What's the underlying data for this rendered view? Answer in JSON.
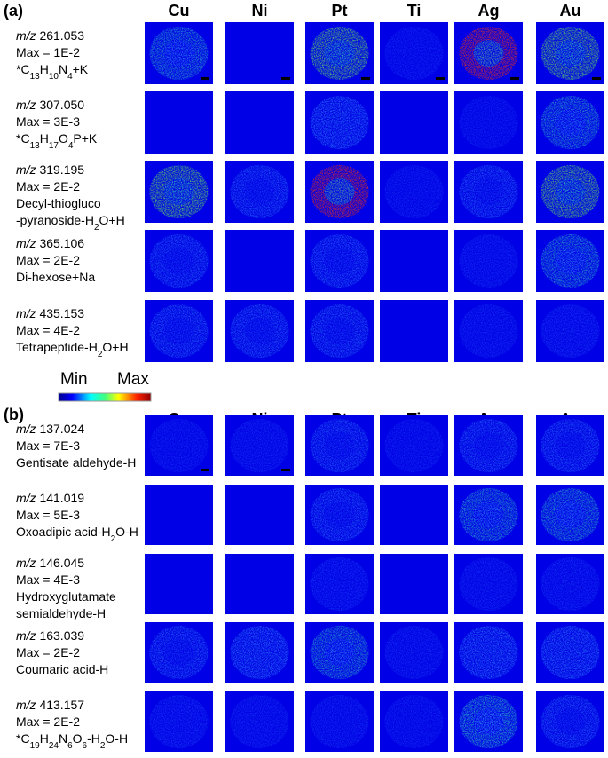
{
  "colorbar": {
    "min": "Min",
    "max": "Max"
  },
  "panels": [
    {
      "label": "(a)",
      "columns": [
        "Cu",
        "Ni",
        "Pt",
        "Ti",
        "Ag",
        "Au"
      ],
      "rows": [
        {
          "lines": [
            [
              {
                "it": "m/z"
              },
              {
                "t": " 261.053"
              }
            ],
            [
              {
                "t": "Max = 1E-2"
              }
            ],
            [
              {
                "t": "*C"
              },
              {
                "sub": "13"
              },
              {
                "t": "H"
              },
              {
                "sub": "10"
              },
              {
                "t": "N"
              },
              {
                "sub": "4"
              },
              {
                "t": "+K"
              }
            ]
          ]
        },
        {
          "lines": [
            [
              {
                "it": "m/z"
              },
              {
                "t": " 307.050"
              }
            ],
            [
              {
                "t": "Max = 3E-3"
              }
            ],
            [
              {
                "t": "*C"
              },
              {
                "sub": "13"
              },
              {
                "t": "H"
              },
              {
                "sub": "17"
              },
              {
                "t": "O"
              },
              {
                "sub": "4"
              },
              {
                "t": "P+K"
              }
            ]
          ]
        },
        {
          "lines": [
            [
              {
                "it": "m/z"
              },
              {
                "t": " 319.195"
              }
            ],
            [
              {
                "t": "Max = 2E-2"
              }
            ],
            [
              {
                "t": "Decyl-thiogluco"
              }
            ],
            [
              {
                "t": "-pyranoside-H"
              },
              {
                "sub": "2"
              },
              {
                "t": "O+H"
              }
            ]
          ]
        },
        {
          "lines": [
            [
              {
                "it": "m/z"
              },
              {
                "t": "  365.106"
              }
            ],
            [
              {
                "t": "Max = 2E-2"
              }
            ],
            [
              {
                "t": "Di-hexose+Na"
              }
            ]
          ]
        },
        {
          "lines": [
            [
              {
                "it": "m/z"
              },
              {
                "t": " 435.153"
              }
            ],
            [
              {
                "t": "Max = 4E-2"
              }
            ],
            [
              {
                "t": "Tetrapeptide-H"
              },
              {
                "sub": "2"
              },
              {
                "t": "O+H"
              }
            ]
          ]
        }
      ]
    },
    {
      "label": "(b)",
      "columns": [
        "Cu",
        "Ni",
        "Pt",
        "Ti",
        "Ag",
        "Au"
      ],
      "rows": [
        {
          "lines": [
            [
              {
                "it": "m/z"
              },
              {
                "t": " 137.024"
              }
            ],
            [
              {
                "t": "Max = 7E-3"
              }
            ],
            [
              {
                "t": "Gentisate aldehyde-H"
              }
            ]
          ]
        },
        {
          "lines": [
            [
              {
                "it": "m/z"
              },
              {
                "t": " 141.019"
              }
            ],
            [
              {
                "t": "Max = 5E-3"
              }
            ],
            [
              {
                "t": "Oxoadipic acid-H"
              },
              {
                "sub": "2"
              },
              {
                "t": "O-H"
              }
            ]
          ]
        },
        {
          "lines": [
            [
              {
                "it": "m/z"
              },
              {
                "t": " 146.045"
              }
            ],
            [
              {
                "t": "Max = 4E-3"
              }
            ],
            [
              {
                "t": "Hydroxyglutamate"
              }
            ],
            [
              {
                "t": "semialdehyde-H"
              }
            ]
          ]
        },
        {
          "lines": [
            [
              {
                "it": "m/z"
              },
              {
                "t": " 163.039"
              }
            ],
            [
              {
                "t": "Max = 2E-2"
              }
            ],
            [
              {
                "t": "Coumaric acid-H"
              }
            ]
          ]
        },
        {
          "lines": [
            [
              {
                "it": "m/z"
              },
              {
                "t": " 413.157"
              }
            ],
            [
              {
                "t": "Max = 2E-2"
              }
            ],
            [
              {
                "t": "*C"
              },
              {
                "sub": "19"
              },
              {
                "t": "H"
              },
              {
                "sub": "24"
              },
              {
                "t": "N"
              },
              {
                "sub": "6"
              },
              {
                "t": "O"
              },
              {
                "sub": "6"
              },
              {
                "t": "-H"
              },
              {
                "sub": "2"
              },
              {
                "t": "O-H"
              }
            ]
          ]
        }
      ]
    }
  ]
}
